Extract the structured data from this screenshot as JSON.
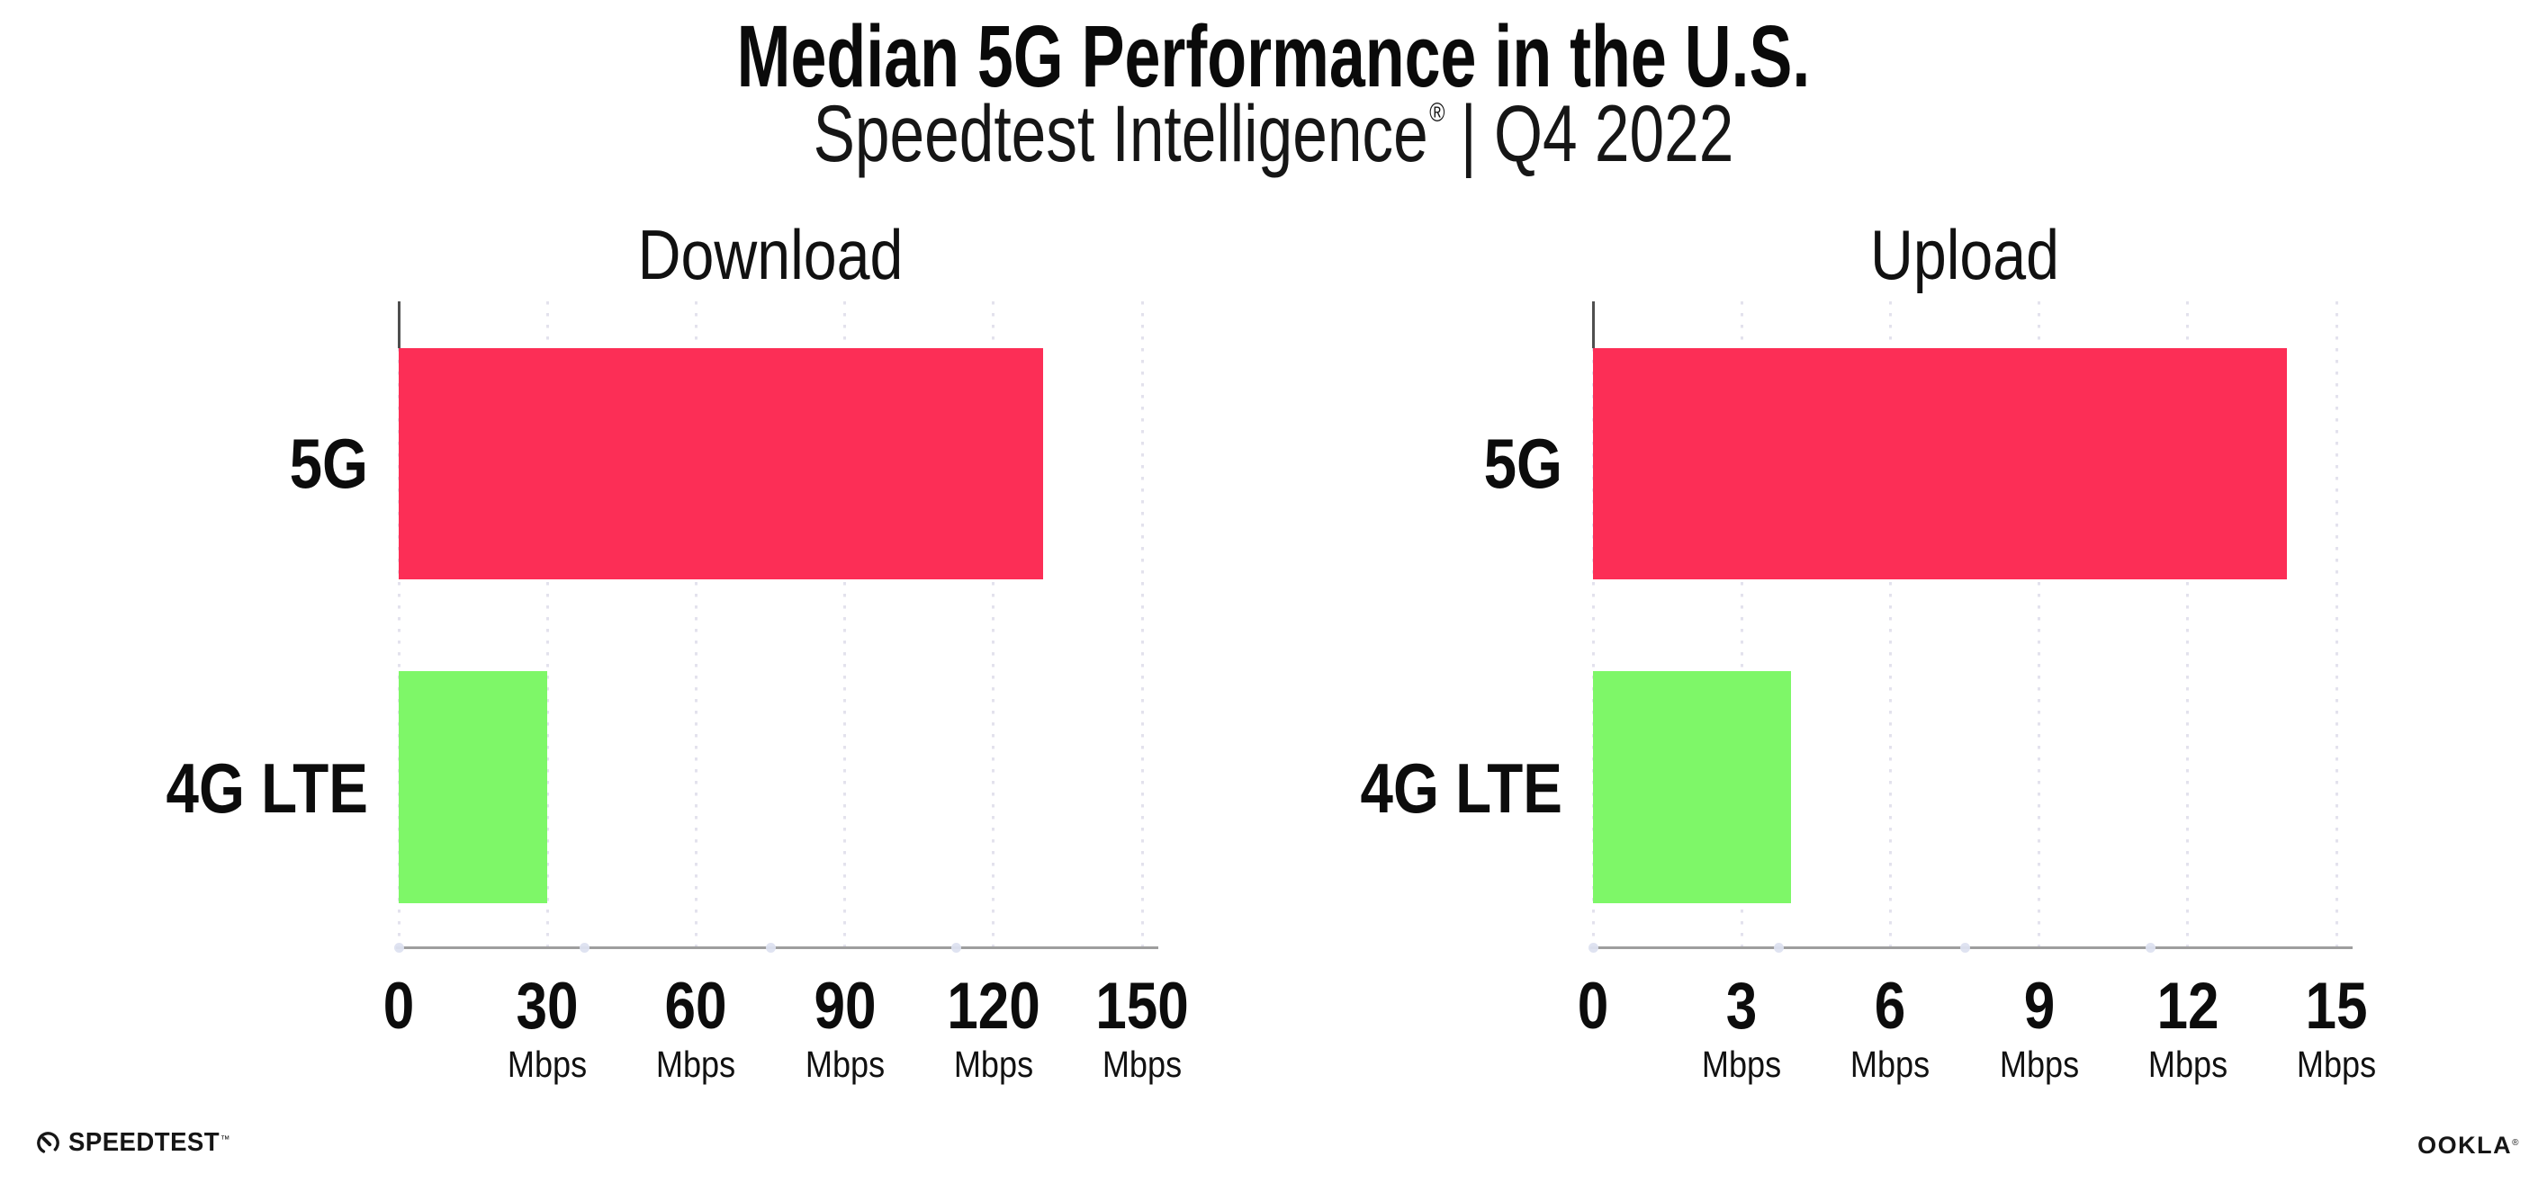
{
  "header": {
    "title": "Median 5G Performance in the U.S.",
    "subtitle_brand": "Speedtest Intelligence",
    "subtitle_reg": "®",
    "subtitle_rest": "| Q4 2022"
  },
  "footer": {
    "speedtest_wordmark": "SPEEDTEST",
    "speedtest_tm": "™",
    "ookla_wordmark": "OOKLA",
    "ookla_reg": "®"
  },
  "colors": {
    "bar_5g": "#fc2e56",
    "bar_4g_lte": "#7ef768",
    "axis_line": "#9e9e9e",
    "axis_stub": "#4f4f4f",
    "gridline_dots": "#e3e2ed",
    "text": "#141414"
  },
  "chart_data": [
    {
      "type": "bar",
      "orientation": "horizontal",
      "title": "Download",
      "categories": [
        "5G",
        "4G LTE"
      ],
      "values": [
        130,
        30
      ],
      "unit": "Mbps",
      "xlim": [
        0,
        150
      ],
      "ticks": [
        0,
        30,
        60,
        90,
        120,
        150
      ],
      "tick_units": [
        "",
        "Mbps",
        "Mbps",
        "Mbps",
        "Mbps",
        "Mbps"
      ],
      "bar_colors": [
        "#fc2e56",
        "#7ef768"
      ],
      "grid": "vertical-dotted",
      "legend": "none"
    },
    {
      "type": "bar",
      "orientation": "horizontal",
      "title": "Upload",
      "categories": [
        "5G",
        "4G LTE"
      ],
      "values": [
        14,
        4
      ],
      "unit": "Mbps",
      "xlim": [
        0,
        15
      ],
      "ticks": [
        0,
        3,
        6,
        9,
        12,
        15
      ],
      "tick_units": [
        "",
        "Mbps",
        "Mbps",
        "Mbps",
        "Mbps",
        "Mbps"
      ],
      "bar_colors": [
        "#fc2e56",
        "#7ef768"
      ],
      "grid": "vertical-dotted",
      "legend": "none"
    }
  ]
}
